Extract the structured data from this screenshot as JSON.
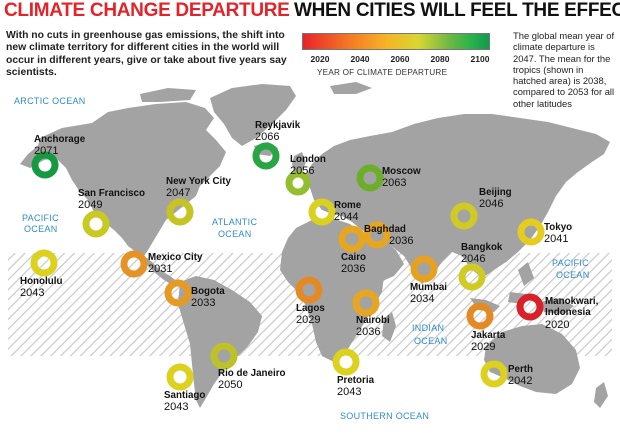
{
  "header": {
    "title_main": "CLIMATE CHANGE DEPARTURE",
    "title_sub": "WHEN CITIES WILL FEEL THE EFFECT"
  },
  "intro": "With no cuts in greenhouse gas emissions, the shift into new climate territory for different cities in the world will occur in different years, give or take about five years say scientists.",
  "legend": {
    "ticks": [
      "2020",
      "2040",
      "2060",
      "2080",
      "2100"
    ],
    "caption": "YEAR OF CLIMATE DEPARTURE",
    "gradient": [
      "#e8232a",
      "#f47a24",
      "#f5b426",
      "#d8d632",
      "#74b843",
      "#2bb34a",
      "#0f9a4e"
    ]
  },
  "note": "The global mean year of climate departure is 2047. The mean for the tropics (shown in hatched area) is 2038, compared to 2053 for all other latitudes",
  "oceans": {
    "arctic": "ARCTIC OCEAN",
    "pacific_west_1": "PACIFIC",
    "pacific_west_2": "OCEAN",
    "atlantic_1": "ATLANTIC",
    "atlantic_2": "OCEAN",
    "pacific_east_1": "PACIFIC",
    "pacific_east_2": "OCEAN",
    "indian_1": "INDIAN",
    "indian_2": "OCEAN",
    "southern": "SOUTHERN OCEAN"
  },
  "colors": {
    "land": "#a3a3a3",
    "ocean_text": "#2f8ccc",
    "tropics_hatch": "#c9c9c9",
    "title_red": "#e2242a"
  },
  "cities": [
    {
      "name": "Anchorage",
      "year": "2071",
      "color": "#159a42"
    },
    {
      "name": "Reykjavik",
      "year": "2066",
      "color": "#2aa545"
    },
    {
      "name": "San Francisco",
      "year": "2049",
      "color": "#c9c923"
    },
    {
      "name": "New York City",
      "year": "2047",
      "color": "#c6c423"
    },
    {
      "name": "London",
      "year": "2056",
      "color": "#94be2f"
    },
    {
      "name": "Moscow",
      "year": "2063",
      "color": "#6cae2a"
    },
    {
      "name": "Rome",
      "year": "2044",
      "color": "#dad11f"
    },
    {
      "name": "Beijing",
      "year": "2046",
      "color": "#cfca24"
    },
    {
      "name": "Baghdad",
      "year": "2036",
      "color": "#e7a621"
    },
    {
      "name": "Cairo",
      "year": "2036",
      "color": "#e7a621"
    },
    {
      "name": "Tokyo",
      "year": "2041",
      "color": "#e4cd1f"
    },
    {
      "name": "Mexico City",
      "year": "2031",
      "color": "#e59326"
    },
    {
      "name": "Honolulu",
      "year": "2043",
      "color": "#dcd11f"
    },
    {
      "name": "Bangkok",
      "year": "2046",
      "color": "#cfca24"
    },
    {
      "name": "Bogota",
      "year": "2033",
      "color": "#e69a24"
    },
    {
      "name": "Mumbai",
      "year": "2034",
      "color": "#e7a122"
    },
    {
      "name": "Lagos",
      "year": "2029",
      "color": "#e48a25"
    },
    {
      "name": "Nairobi",
      "year": "2036",
      "color": "#e7a621"
    },
    {
      "name": "Manokwari, Indonesia",
      "year": "2020",
      "color": "#d9212a"
    },
    {
      "name": "Jakarta",
      "year": "2029",
      "color": "#e48a25"
    },
    {
      "name": "Rio de Janeiro",
      "year": "2050",
      "color": "#bcc228"
    },
    {
      "name": "Pretoria",
      "year": "2043",
      "color": "#dcd11f"
    },
    {
      "name": "Santiago",
      "year": "2043",
      "color": "#dcd11f"
    },
    {
      "name": "Perth",
      "year": "2042",
      "color": "#ddd01f"
    }
  ]
}
